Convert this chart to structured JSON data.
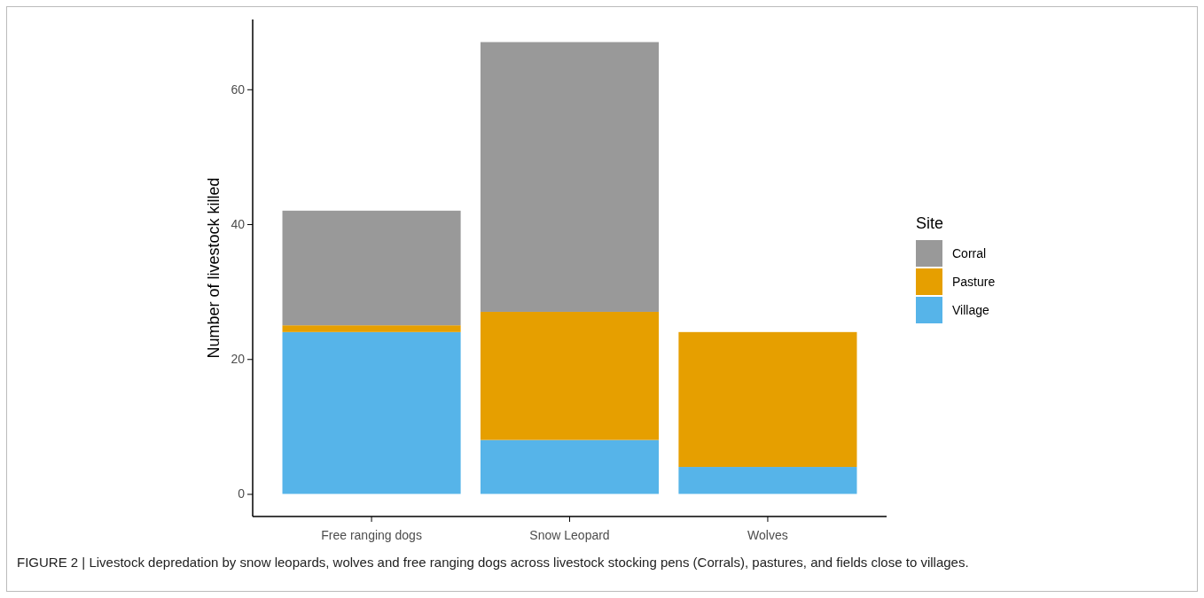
{
  "chart_data": {
    "type": "bar",
    "stacked": true,
    "ylabel": "Number of livestock killed",
    "legend_title": "Site",
    "legend": "right",
    "categories": [
      "Free ranging dogs",
      "Snow Leopard",
      "Wolves"
    ],
    "series": [
      {
        "name": "Village",
        "color": "#56b4e9",
        "values": [
          24,
          8,
          4
        ]
      },
      {
        "name": "Pasture",
        "color": "#e69f00",
        "values": [
          1,
          19,
          20
        ]
      },
      {
        "name": "Corral",
        "color": "#999999",
        "values": [
          17,
          40,
          0
        ]
      }
    ],
    "ylim": [
      -3.35,
      70.35
    ],
    "yticks": [
      0,
      20,
      40,
      60
    ],
    "grid": false,
    "annotations": [
      "FIGURE 2 | Livestock depredation by snow leopards, wolves and free ranging dogs across livestock stocking pens (Corrals), pastures, and fields close to villages."
    ]
  }
}
